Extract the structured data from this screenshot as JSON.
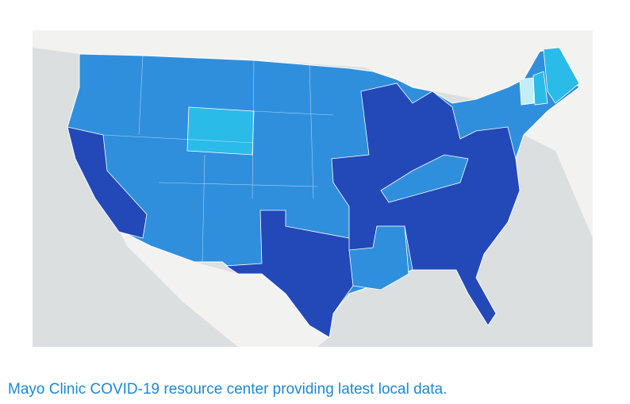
{
  "caption": {
    "text": "Mayo Clinic COVID-19 resource center providing latest local data."
  }
}
